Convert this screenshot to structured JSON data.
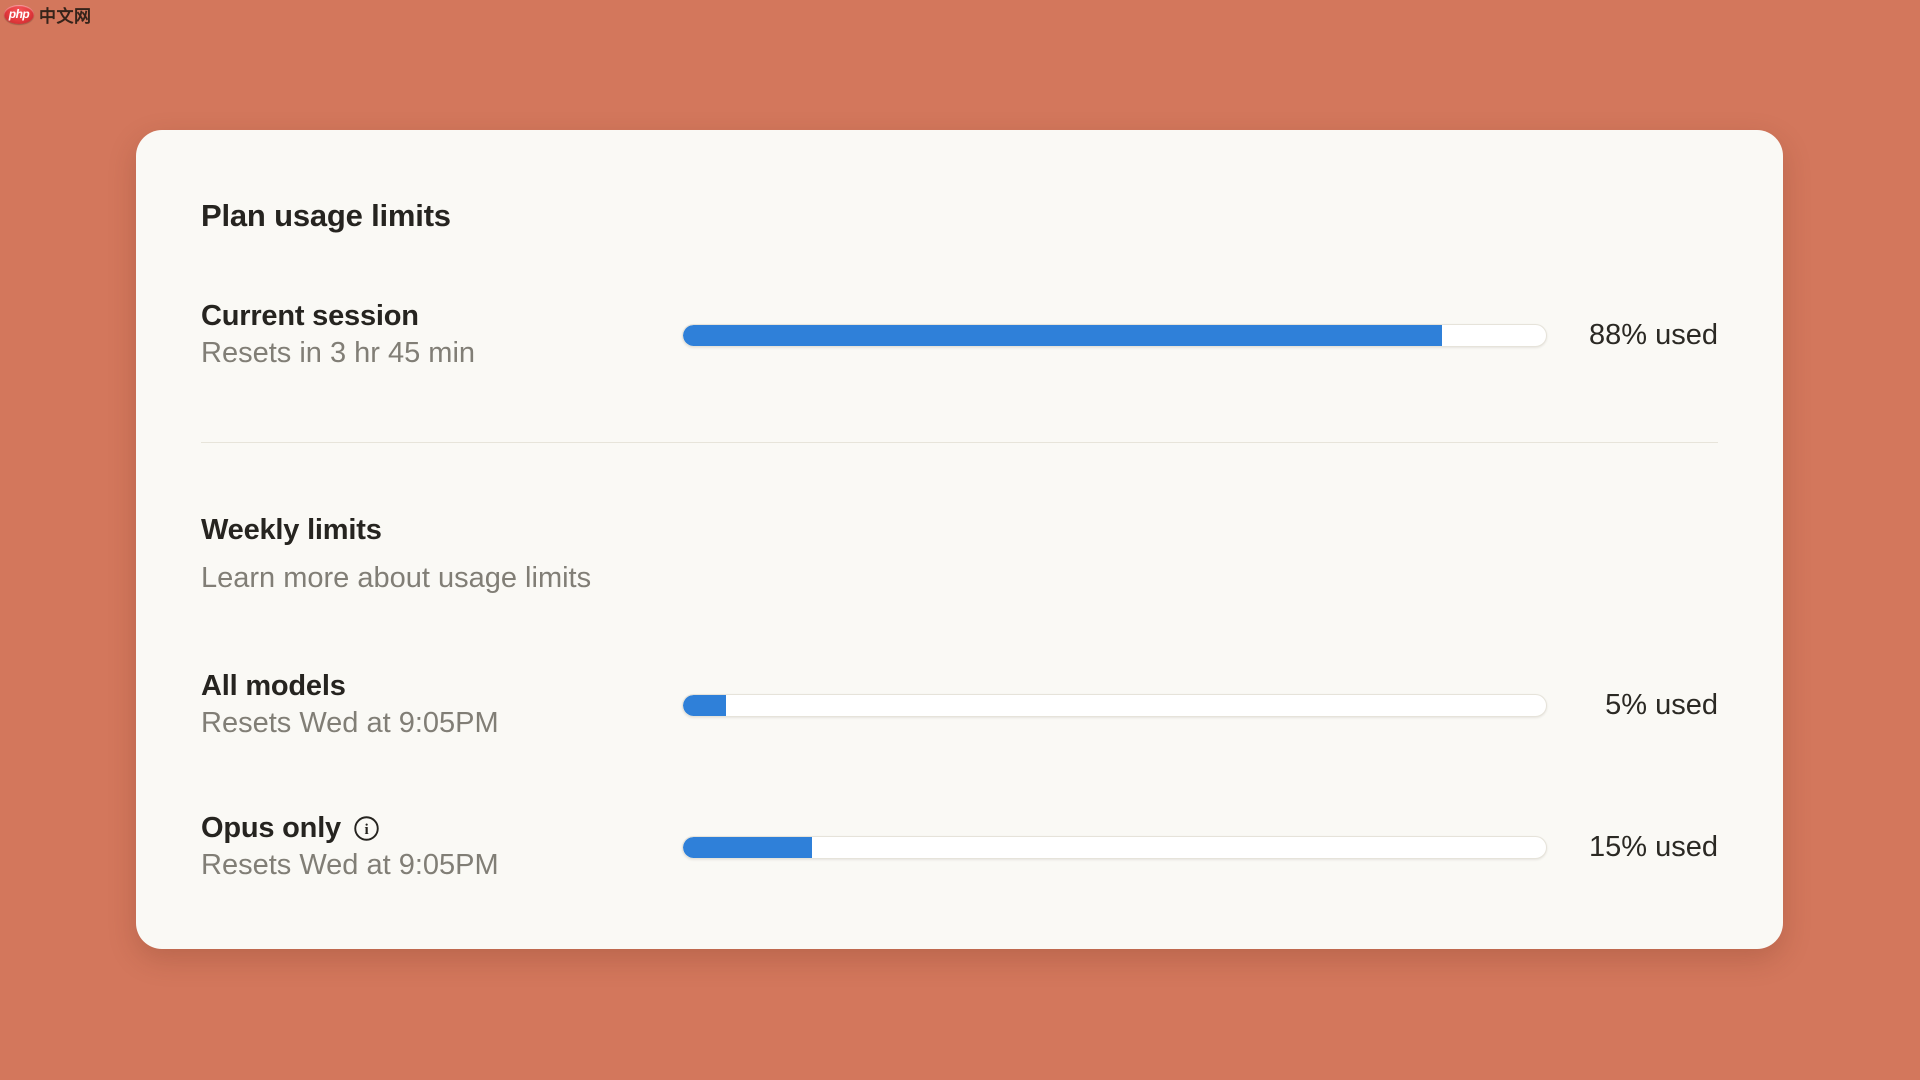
{
  "colors": {
    "page_background": "#d3775c",
    "card_background": "#faf9f5",
    "accent_blue": "#2f80d9",
    "text_dark": "#262420",
    "text_gray": "#817e76",
    "logo_badge_red": "#e4393c"
  },
  "logo": {
    "badge_text": "php",
    "site_text": "中文网"
  },
  "panel": {
    "title": "Plan usage limits",
    "current_session": {
      "title": "Current session",
      "subtitle": "Resets in 3 hr 45 min",
      "percent": 88,
      "percent_label": "88% used"
    },
    "weekly": {
      "title": "Weekly limits",
      "link_label": "Learn more about usage limits"
    },
    "all_models": {
      "title": "All models",
      "subtitle": "Resets Wed at 9:05PM",
      "percent": 5,
      "percent_label": "5% used"
    },
    "opus_only": {
      "title": "Opus only",
      "subtitle": "Resets Wed at 9:05PM",
      "percent": 15,
      "percent_label": "15% used"
    }
  },
  "icons": {
    "info": "circle-i"
  }
}
